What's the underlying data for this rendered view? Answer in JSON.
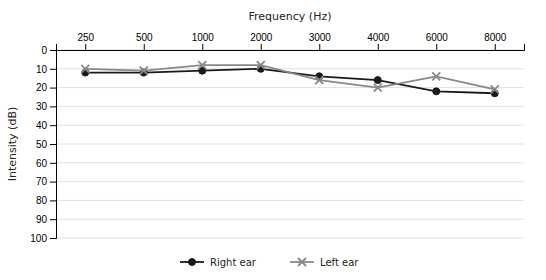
{
  "chart_data": {
    "type": "line",
    "xlabel": "Frequency (Hz)",
    "ylabel": "Intensity (dB)",
    "categories": [
      "250",
      "500",
      "1000",
      "2000",
      "3000",
      "4000",
      "6000",
      "8000"
    ],
    "series": [
      {
        "name": "Right ear",
        "color": "#1a1a1a",
        "marker": "circle",
        "values": [
          12,
          12,
          11,
          10,
          14,
          16,
          22,
          23
        ]
      },
      {
        "name": "Left ear",
        "color": "#888888",
        "marker": "x",
        "values": [
          10,
          11,
          8,
          8,
          16,
          20,
          14,
          21
        ]
      }
    ],
    "ylim": [
      100,
      0
    ],
    "yticks": [
      0,
      10,
      20,
      30,
      40,
      50,
      60,
      70,
      80,
      90,
      100
    ],
    "grid": true,
    "legend": "bottom"
  }
}
